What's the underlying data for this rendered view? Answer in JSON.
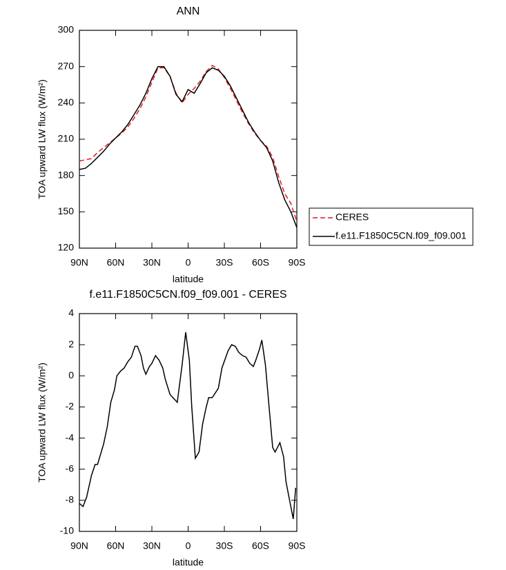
{
  "chart_data": [
    {
      "type": "line",
      "title": "ANN",
      "xlabel": "latitude",
      "ylabel": "TOA upward LW flux (W/m²)",
      "x": [
        90,
        85,
        80,
        75,
        70,
        65,
        60,
        55,
        50,
        45,
        40,
        35,
        30,
        25,
        20,
        15,
        10,
        5,
        0,
        -5,
        -10,
        -15,
        -20,
        -25,
        -30,
        -35,
        -40,
        -45,
        -50,
        -55,
        -60,
        -65,
        -70,
        -75,
        -80,
        -85,
        -90
      ],
      "series": [
        {
          "name": "CERES",
          "color": "#e3191c",
          "dash": "dashed",
          "values": [
            192,
            193,
            194,
            199,
            203,
            207,
            211,
            215,
            220,
            227,
            235,
            245,
            257,
            269,
            269,
            262,
            248,
            240,
            247,
            252,
            258,
            266,
            271,
            268,
            261,
            252,
            242,
            232,
            223,
            215,
            209,
            204,
            195,
            179,
            165,
            157,
            142
          ]
        },
        {
          "name": "f.e11.F1850C5CN.f09_f09.001",
          "color": "#000000",
          "dash": "solid",
          "values": [
            185,
            186,
            190,
            195,
            200,
            206,
            211,
            216,
            222,
            230,
            238,
            248,
            260,
            270,
            270,
            262,
            247,
            241,
            251,
            248,
            256,
            265,
            269,
            267,
            262,
            254,
            244,
            234,
            224,
            216,
            209,
            203,
            192,
            174,
            160,
            150,
            137
          ]
        }
      ],
      "xlim": [
        90,
        -90
      ],
      "xticks": [
        {
          "value": 90,
          "label": "90N"
        },
        {
          "value": 60,
          "label": "60N"
        },
        {
          "value": 30,
          "label": "30N"
        },
        0,
        {
          "value": -30,
          "label": "30S"
        },
        {
          "value": -60,
          "label": "60S"
        },
        {
          "value": -90,
          "label": "90S"
        }
      ],
      "ylim": [
        120,
        300
      ],
      "yticks": [
        120,
        150,
        180,
        210,
        240,
        270,
        300
      ],
      "legend": "right"
    },
    {
      "type": "line",
      "title": "f.e11.F1850C5CN.f09_f09.001 - CERES",
      "xlabel": "latitude",
      "ylabel": "TOA upward LW flux (W/m²)",
      "x": [
        90,
        87,
        84,
        80,
        77,
        75,
        70,
        67,
        64,
        61,
        59,
        56,
        53,
        50,
        47,
        44,
        42,
        39,
        37,
        35,
        32,
        30,
        27,
        24,
        21,
        19,
        15,
        9,
        5,
        2,
        -1,
        -3,
        -6,
        -9,
        -12,
        -15,
        -17,
        -20,
        -25,
        -28,
        -33,
        -36,
        -39,
        -42,
        -45,
        -48,
        -51,
        -54,
        -56,
        -59,
        -61,
        -64,
        -67,
        -70,
        -72,
        -76,
        -79,
        -81,
        -84,
        -87,
        -89
      ],
      "values": [
        -8.2,
        -8.4,
        -7.8,
        -6.4,
        -5.7,
        -5.7,
        -4.4,
        -3.3,
        -1.7,
        -0.9,
        0,
        0.3,
        0.5,
        0.9,
        1.2,
        1.9,
        1.9,
        1.3,
        0.5,
        0.1,
        0.6,
        0.8,
        1.3,
        1.0,
        0.5,
        -0.2,
        -1.2,
        -1.7,
        0.7,
        2.8,
        1.0,
        -2.0,
        -5.3,
        -4.9,
        -3.1,
        -2.0,
        -1.4,
        -1.4,
        -0.8,
        0.5,
        1.6,
        2.0,
        1.9,
        1.5,
        1.3,
        1.2,
        0.8,
        0.6,
        1.0,
        1.7,
        2.3,
        0.7,
        -2.0,
        -4.6,
        -4.9,
        -4.3,
        -5.2,
        -6.8,
        -8.0,
        -9.2,
        -7.2
      ],
      "color": "#000000",
      "xlim": [
        90,
        -90
      ],
      "xticks": [
        {
          "value": 90,
          "label": "90N"
        },
        {
          "value": 60,
          "label": "60N"
        },
        {
          "value": 30,
          "label": "30N"
        },
        0,
        {
          "value": -30,
          "label": "30S"
        },
        {
          "value": -60,
          "label": "60S"
        },
        {
          "value": -90,
          "label": "90S"
        }
      ],
      "ylim": [
        -10,
        4
      ],
      "yticks": [
        -10,
        -8,
        -6,
        -4,
        -2,
        0,
        2,
        4
      ]
    }
  ]
}
